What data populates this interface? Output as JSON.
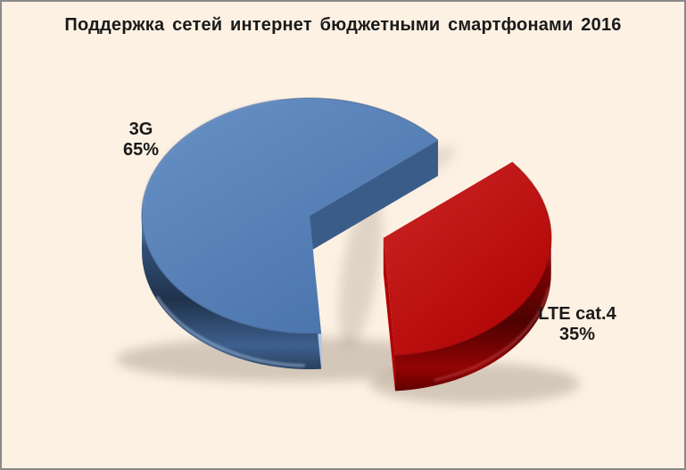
{
  "window": {
    "background_color": "#FDF1E3",
    "border_color": "#8A8A8A",
    "text_color": "#1A1A1A"
  },
  "chart_data": {
    "type": "pie",
    "title": "Поддержка сетей интернет бюджетными смартфонами 2016",
    "unit": "percent",
    "total": 100,
    "slices": [
      {
        "label": "3G",
        "value": 65,
        "value_label": "65%",
        "color": "#5180BE",
        "exploded": false
      },
      {
        "label": "LTE cat.4",
        "value": 35,
        "value_label": "35%",
        "color": "#C40404",
        "exploded": true
      }
    ],
    "layout_hints": {
      "style": "3d-exploded-pie",
      "start_angle_deg": 40,
      "direction": "ccw",
      "legend": "none",
      "labels": "category-name-and-percent-outside"
    }
  }
}
